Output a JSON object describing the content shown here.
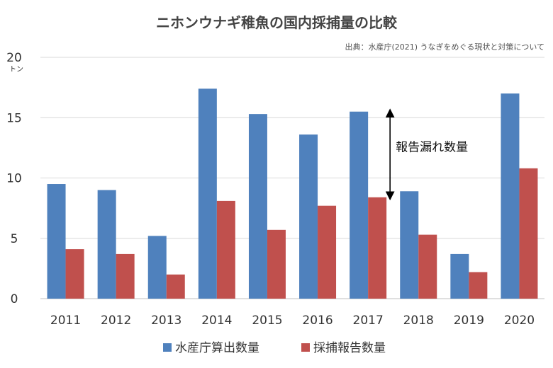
{
  "chart_data": {
    "type": "bar",
    "title": "ニホンウナギ稚魚の国内採捕量の比較",
    "source": "出典：水産庁(2021) うなぎをめぐる現状と対策について",
    "y_unit": "トン",
    "ylim": [
      0,
      20
    ],
    "yticks": [
      0,
      5,
      10,
      15,
      20
    ],
    "grid": true,
    "legend_position": "bottom",
    "categories": [
      "2011",
      "2012",
      "2013",
      "2014",
      "2015",
      "2016",
      "2017",
      "2018",
      "2019",
      "2020"
    ],
    "series": [
      {
        "name": "水産庁算出数量",
        "color": "#4f81bd",
        "values": [
          9.5,
          9.0,
          5.2,
          17.4,
          15.3,
          13.6,
          15.5,
          8.9,
          3.7,
          17.0
        ]
      },
      {
        "name": "採捕報告数量",
        "color": "#c0504d",
        "values": [
          4.1,
          3.7,
          2.0,
          8.1,
          5.7,
          7.7,
          8.4,
          5.3,
          2.2,
          10.8
        ]
      }
    ],
    "annotation": {
      "text": "報告漏れ数量",
      "category": "2017",
      "from": 8.4,
      "to": 15.5
    }
  }
}
